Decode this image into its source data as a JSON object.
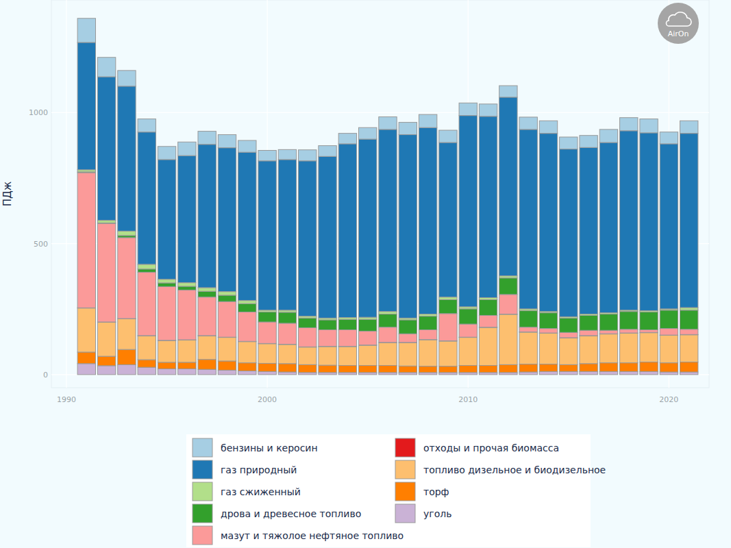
{
  "chart_data": {
    "type": "bar",
    "stacked": true,
    "grid": true,
    "legend": "bottom",
    "y_label": "ПДж",
    "watermark": "AirOn",
    "x": [
      1991,
      1992,
      1993,
      1994,
      1995,
      1996,
      1997,
      1998,
      1999,
      2000,
      2001,
      2002,
      2003,
      2004,
      2005,
      2006,
      2007,
      2008,
      2009,
      2010,
      2011,
      2012,
      2013,
      2014,
      2015,
      2016,
      2017,
      2018,
      2019,
      2020,
      2021
    ],
    "xlim": [
      1989.25,
      2022.0
    ],
    "xticks": [
      1990,
      2000,
      2010,
      2020
    ],
    "ylim": [
      -50,
      1430
    ],
    "yticks": [
      0,
      500,
      1000
    ],
    "series": [
      {
        "name": "бензины и керосин",
        "color": "#a6cee3",
        "values": [
          92,
          74,
          60,
          50,
          50,
          52,
          50,
          50,
          45,
          40,
          38,
          42,
          41,
          40,
          44,
          48,
          47,
          50,
          47,
          48,
          47,
          44,
          47,
          48,
          46,
          46,
          50,
          50,
          53,
          45,
          48
        ]
      },
      {
        "name": "газ природный",
        "color": "#1f78b4",
        "values": [
          486,
          548,
          553,
          505,
          457,
          485,
          547,
          549,
          566,
          570,
          575,
          593,
          617,
          663,
          680,
          695,
          700,
          712,
          590,
          730,
          692,
          682,
          685,
          680,
          640,
          636,
          650,
          685,
          679,
          630,
          665
        ]
      },
      {
        "name": "газ сжиженный",
        "color": "#b2df8a",
        "values": [
          8,
          10,
          17,
          18,
          14,
          14,
          14,
          14,
          12,
          7,
          8,
          7,
          7,
          7,
          8,
          10,
          7,
          8,
          10,
          8,
          8,
          8,
          7,
          5,
          5,
          5,
          5,
          5,
          5,
          5,
          10
        ]
      },
      {
        "name": "дрова и древесное топливо",
        "color": "#33a02c",
        "values": [
          3,
          2,
          8,
          12,
          14,
          14,
          22,
          24,
          32,
          38,
          42,
          37,
          38,
          40,
          45,
          50,
          53,
          52,
          53,
          58,
          60,
          63,
          63,
          60,
          55,
          57,
          62,
          68,
          68,
          70,
          73
        ]
      },
      {
        "name": "мазут и тяжолое нефтяное топливо",
        "color": "#fb9a99",
        "values": [
          516,
          376,
          309,
          242,
          205,
          190,
          147,
          136,
          112,
          82,
          80,
          73,
          63,
          63,
          53,
          58,
          33,
          37,
          104,
          50,
          45,
          75,
          18,
          17,
          20,
          20,
          13,
          14,
          10,
          25,
          20
        ]
      },
      {
        "name": "отходы и прочая биомасса",
        "color": "#e31a1c",
        "values": [
          1,
          1,
          1,
          1,
          1,
          1,
          1,
          1,
          1,
          1,
          1,
          1,
          1,
          1,
          1,
          1,
          1,
          1,
          1,
          1,
          1,
          1,
          1,
          1,
          1,
          1,
          1,
          1,
          1,
          1,
          1
        ]
      },
      {
        "name": "топливо дизельное и биодизельное",
        "color": "#fdbf6f",
        "values": [
          168,
          130,
          117,
          91,
          83,
          85,
          90,
          90,
          81,
          75,
          73,
          67,
          71,
          72,
          77,
          87,
          89,
          101,
          96,
          107,
          145,
          192,
          122,
          118,
          102,
          106,
          110,
          113,
          112,
          105,
          104
        ]
      },
      {
        "name": "торф",
        "color": "#ff7f00",
        "values": [
          44,
          36,
          58,
          29,
          25,
          25,
          38,
          35,
          31,
          31,
          32,
          30,
          28,
          27,
          27,
          27,
          25,
          24,
          24,
          27,
          27,
          30,
          30,
          28,
          26,
          30,
          33,
          33,
          36,
          35,
          38
        ]
      },
      {
        "name": "уголь",
        "color": "#cab2d6",
        "values": [
          42,
          34,
          38,
          28,
          22,
          22,
          20,
          17,
          14,
          12,
          10,
          8,
          8,
          8,
          8,
          8,
          8,
          8,
          8,
          8,
          8,
          8,
          10,
          12,
          12,
          12,
          12,
          12,
          12,
          10,
          10
        ]
      }
    ]
  }
}
